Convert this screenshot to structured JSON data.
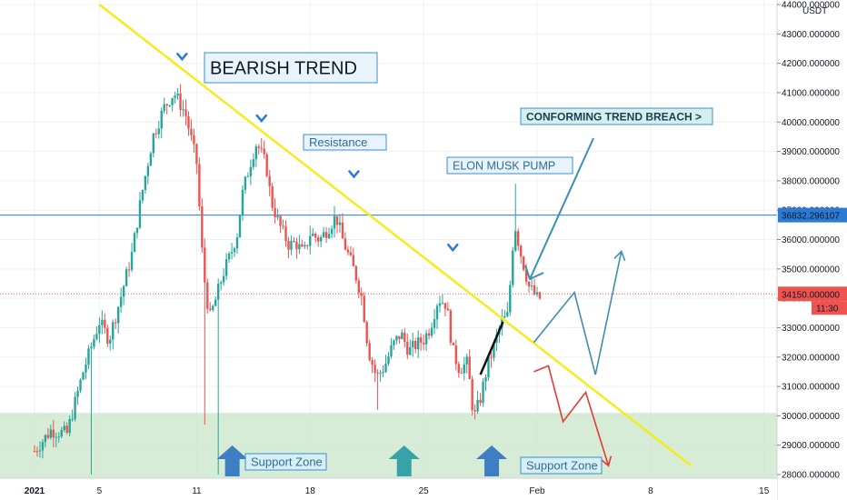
{
  "chart_data": {
    "type": "candlestick",
    "y_unit": "USDT",
    "ylim": [
      28000,
      44000
    ],
    "y_ticks": [
      28000,
      29000,
      30000,
      31000,
      32000,
      33000,
      34000,
      35000,
      36000,
      37000,
      38000,
      39000,
      40000,
      41000,
      42000,
      43000,
      44000
    ],
    "y_tick_labels": [
      "28000.000000",
      "29000.000000",
      "30000.000000",
      "31000.000000",
      "32000.000000",
      "33000.000000",
      "34000.000000",
      "35000.000000",
      "36000.000000",
      "37000.000000",
      "38000.000000",
      "39000.000000",
      "40000.000000",
      "41000.000000",
      "42000.000000",
      "43000.000000",
      "44000.000000"
    ],
    "x_tick_labels": [
      {
        "label": "2021",
        "day": 1
      },
      {
        "label": "5",
        "day": 5
      },
      {
        "label": "11",
        "day": 11
      },
      {
        "label": "18",
        "day": 18
      },
      {
        "label": "25",
        "day": 25
      },
      {
        "label": "Feb",
        "day": 32
      },
      {
        "label": "8",
        "day": 39
      },
      {
        "label": "15",
        "day": 46
      }
    ],
    "price_anchors": [
      [
        0,
        28800
      ],
      [
        1,
        29500
      ],
      [
        2,
        29400
      ],
      [
        3,
        31500
      ],
      [
        4,
        33200
      ],
      [
        4.6,
        32600
      ],
      [
        5.3,
        34000
      ],
      [
        6,
        35500
      ],
      [
        6.6,
        37500
      ],
      [
        7.3,
        39500
      ],
      [
        8,
        40500
      ],
      [
        8.6,
        41000
      ],
      [
        9.3,
        40300
      ],
      [
        10,
        38600
      ],
      [
        10.4,
        35000
      ],
      [
        10.8,
        33300
      ],
      [
        11.2,
        34000
      ],
      [
        11.6,
        34800
      ],
      [
        12.1,
        35500
      ],
      [
        12.5,
        36200
      ],
      [
        12.8,
        37500
      ],
      [
        13.4,
        38800
      ],
      [
        13.7,
        39300
      ],
      [
        14.3,
        38500
      ],
      [
        14.6,
        37300
      ],
      [
        15.1,
        36500
      ],
      [
        15.7,
        35800
      ],
      [
        16.1,
        35900
      ],
      [
        16.6,
        35500
      ],
      [
        17.0,
        36200
      ],
      [
        17.6,
        36000
      ],
      [
        18.0,
        36300
      ],
      [
        18.6,
        36800
      ],
      [
        19.0,
        36000
      ],
      [
        19.4,
        35400
      ],
      [
        19.8,
        34800
      ],
      [
        20.2,
        34000
      ],
      [
        20.6,
        32200
      ],
      [
        21.1,
        31300
      ],
      [
        21.6,
        31700
      ],
      [
        22.1,
        32400
      ],
      [
        22.6,
        32800
      ],
      [
        23.1,
        32200
      ],
      [
        23.5,
        32400
      ],
      [
        24.0,
        32600
      ],
      [
        24.4,
        33000
      ],
      [
        24.9,
        34000
      ],
      [
        25.4,
        33800
      ],
      [
        25.8,
        32200
      ],
      [
        26.2,
        31600
      ],
      [
        26.7,
        31800
      ],
      [
        27.1,
        29900
      ],
      [
        27.5,
        30600
      ],
      [
        27.9,
        31600
      ],
      [
        28.3,
        32300
      ],
      [
        28.8,
        33200
      ],
      [
        29.2,
        33400
      ],
      [
        29.6,
        36600
      ],
      [
        30.0,
        35500
      ],
      [
        30.5,
        34400
      ],
      [
        31.0,
        34000
      ]
    ],
    "horizontal_levels": [
      {
        "value": 36832.296107,
        "label": "36832.296107",
        "color": "#2a7bd4"
      },
      {
        "value": 34150.0,
        "label": "34150.000000",
        "sublabel": "11:30",
        "color": "#ef5350"
      }
    ],
    "support_zone": {
      "low": 28000,
      "high": 30100,
      "color": "#c8e6c9"
    },
    "trendline": {
      "from": {
        "day": 5,
        "value": 44000
      },
      "to": {
        "day": 41.5,
        "value": 28300
      },
      "color": "#f5ec1e"
    },
    "colors": {
      "up": "#26a69a",
      "down": "#ef5350",
      "grid": "#eef0f3",
      "axis": "#131722"
    },
    "annotations": {
      "bearish": "BEARISH TREND",
      "resistance": "Resistance",
      "elon": "ELON MUSK PUMP",
      "breach": "CONFORMING TREND BREACH >",
      "support": "Support Zone"
    },
    "forecast_paths": [
      {
        "color": "#3d8fae",
        "points": [
          [
            30.8,
            32500
          ],
          [
            33.3,
            34200
          ],
          [
            34.6,
            31400
          ],
          [
            36.2,
            35600
          ]
        ]
      },
      {
        "color": "#e53935",
        "points": [
          [
            30.8,
            31500
          ],
          [
            31.7,
            31700
          ],
          [
            32.6,
            29800
          ],
          [
            34.0,
            30800
          ],
          [
            35.4,
            28300
          ]
        ]
      }
    ],
    "reverse_label_hint": "",
    "markers": {
      "down_arrows": [
        {
          "day": 9.1,
          "value": 42200
        },
        {
          "day": 14.0,
          "value": 40100
        },
        {
          "day": 19.7,
          "value": 38200
        },
        {
          "day": 25.8,
          "value": 35700
        }
      ],
      "up_arrows": [
        {
          "day": 12.2,
          "color": "#3d7fc2"
        },
        {
          "day": 22.8,
          "color": "#37a3a9"
        },
        {
          "day": 28.2,
          "color": "#3d7fc2"
        }
      ]
    }
  }
}
